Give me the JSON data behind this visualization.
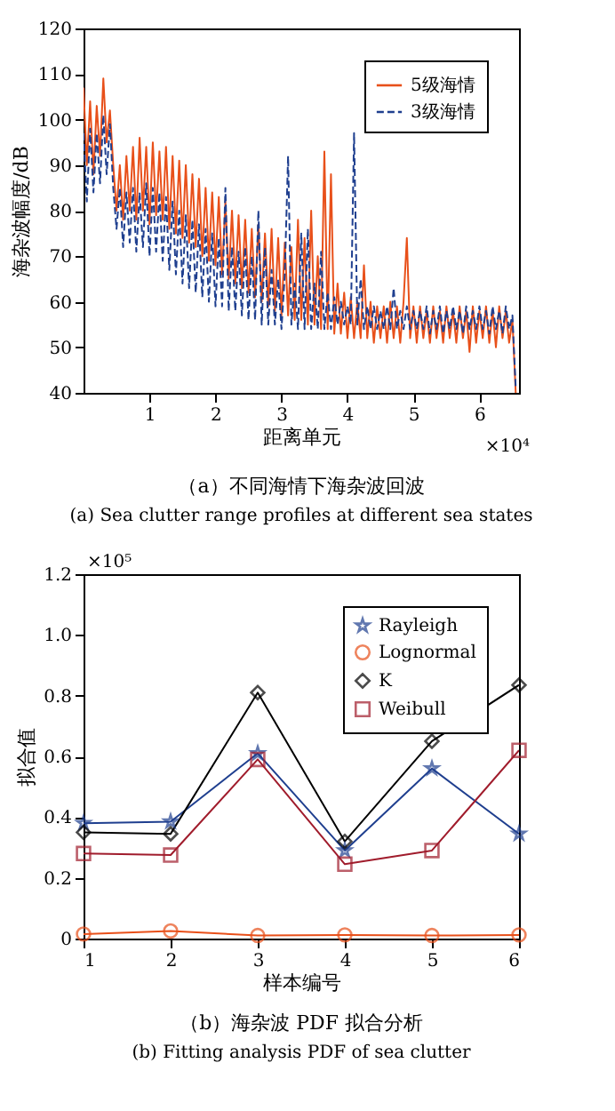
{
  "chart_data": [
    {
      "type": "line",
      "title": "（a）不同海情下海杂波回波",
      "subtitle": "(a) Sea clutter range profiles at different sea states",
      "xlabel": "距离单元",
      "ylabel": "海杂波幅度/dB",
      "annotations": [
        "×10⁴"
      ],
      "x": [
        0.0,
        0.05,
        0.1,
        0.15,
        0.2,
        0.25,
        0.3,
        0.35,
        0.4,
        0.45,
        0.5,
        0.55,
        0.6,
        0.65,
        0.7,
        0.75,
        0.8,
        0.85,
        0.9,
        0.95,
        1.0,
        1.05,
        1.1,
        1.15,
        1.2,
        1.25,
        1.3,
        1.35,
        1.4,
        1.45,
        1.5,
        1.55,
        1.6,
        1.65,
        1.7,
        1.75,
        1.8,
        1.85,
        1.9,
        1.95,
        2.0,
        2.05,
        2.1,
        2.15,
        2.2,
        2.25,
        2.3,
        2.35,
        2.4,
        2.45,
        2.5,
        2.55,
        2.6,
        2.65,
        2.7,
        2.75,
        2.8,
        2.85,
        2.9,
        2.95,
        3.0,
        3.05,
        3.1,
        3.15,
        3.2,
        3.25,
        3.3,
        3.35,
        3.4,
        3.45,
        3.5,
        3.55,
        3.6,
        3.65,
        3.7,
        3.75,
        3.8,
        3.85,
        3.9,
        3.95,
        4.0,
        4.05,
        4.1,
        4.15,
        4.2,
        4.25,
        4.3,
        4.35,
        4.4,
        4.45,
        4.5,
        4.55,
        4.6,
        4.65,
        4.7,
        4.75,
        4.8,
        4.85,
        4.9,
        4.95,
        5.0,
        5.05,
        5.1,
        5.15,
        5.2,
        5.25,
        5.3,
        5.35,
        5.4,
        5.45,
        5.5,
        5.55,
        5.6,
        5.65,
        5.7,
        5.75,
        5.8,
        5.85,
        5.9,
        5.95,
        6.0,
        6.05,
        6.1,
        6.15,
        6.2,
        6.25,
        6.3,
        6.35,
        6.4,
        6.45,
        6.5,
        6.55
      ],
      "series": [
        {
          "name": "5级海情",
          "color": "#e8501a",
          "line_style": "solid",
          "values": [
            107,
            90,
            104,
            88,
            103,
            92,
            109,
            95,
            102,
            90,
            80,
            90,
            78,
            92,
            80,
            94,
            78,
            96,
            80,
            94,
            77,
            95,
            79,
            93,
            78,
            94,
            76,
            92,
            75,
            91,
            74,
            90,
            73,
            88,
            72,
            87,
            70,
            85,
            69,
            84,
            68,
            83,
            66,
            82,
            65,
            80,
            64,
            79,
            63,
            78,
            62,
            76,
            61,
            77,
            60,
            75,
            59,
            76,
            58,
            74,
            57,
            73,
            57,
            72,
            56,
            78,
            56,
            74,
            55,
            80,
            55,
            70,
            54,
            93,
            54,
            88,
            53,
            64,
            53,
            62,
            52,
            61,
            52,
            60,
            52,
            68,
            52,
            60,
            51,
            59,
            52,
            59,
            51,
            60,
            52,
            59,
            51,
            60,
            74,
            52,
            59,
            51,
            59,
            52,
            58,
            51,
            59,
            52,
            58,
            51,
            59,
            52,
            58,
            51,
            59,
            52,
            58,
            49,
            59,
            51,
            58,
            52,
            59,
            51,
            58,
            50,
            59,
            52,
            58,
            51,
            56,
            40
          ]
        },
        {
          "name": "3级海情",
          "color": "#1f3f8f",
          "line_style": "dashed",
          "values": [
            97,
            82,
            98,
            84,
            97,
            86,
            101,
            88,
            99,
            85,
            76,
            85,
            72,
            84,
            73,
            85,
            71,
            84,
            72,
            86,
            70,
            85,
            71,
            84,
            69,
            83,
            67,
            82,
            66,
            80,
            64,
            79,
            63,
            78,
            62,
            77,
            61,
            76,
            60,
            75,
            59,
            74,
            59,
            85,
            58,
            72,
            58,
            71,
            57,
            72,
            56,
            70,
            56,
            80,
            55,
            72,
            55,
            67,
            55,
            65,
            54,
            66,
            92,
            55,
            64,
            54,
            75,
            54,
            76,
            54,
            64,
            54,
            71,
            54,
            62,
            54,
            61,
            55,
            60,
            55,
            59,
            55,
            97,
            55,
            65,
            54,
            59,
            54,
            59,
            54,
            58,
            54,
            59,
            54,
            63,
            54,
            58,
            54,
            59,
            54,
            58,
            54,
            58,
            54,
            59,
            53,
            58,
            54,
            59,
            53,
            58,
            54,
            59,
            54,
            58,
            53,
            59,
            54,
            58,
            54,
            59,
            54,
            58,
            53,
            59,
            54,
            58,
            53,
            59,
            54,
            57,
            41
          ]
        }
      ],
      "xlim": [
        0,
        6.6
      ],
      "xticks": [
        1,
        2,
        3,
        4,
        5,
        6
      ],
      "ylim": [
        40,
        120
      ],
      "yticks": [
        40,
        50,
        60,
        70,
        80,
        90,
        100,
        110,
        120
      ],
      "grid": false,
      "legend": "top right"
    },
    {
      "type": "line",
      "title": "（b）海杂波 PDF 拟合分析",
      "subtitle": "(b) Fitting analysis PDF of sea clutter",
      "xlabel": "样本编号",
      "ylabel": "拟合值",
      "annotations": [
        "×10⁵"
      ],
      "x": [
        1,
        2,
        3,
        4,
        5,
        6
      ],
      "series": [
        {
          "name": "Rayleigh",
          "color": "#1f3f8f",
          "marker": "star",
          "line_style": "solid",
          "values": [
            0.38,
            0.385,
            0.61,
            0.29,
            0.56,
            0.345
          ]
        },
        {
          "name": "Lognormal",
          "color": "#e8501a",
          "marker": "circle",
          "line_style": "solid",
          "values": [
            0.015,
            0.025,
            0.01,
            0.012,
            0.01,
            0.012
          ]
        },
        {
          "name": "K",
          "color": "#000000",
          "marker": "diamond",
          "line_style": "solid",
          "values": [
            0.35,
            0.345,
            0.81,
            0.32,
            0.65,
            0.835
          ]
        },
        {
          "name": "Weibull",
          "color": "#a01c2c",
          "marker": "square",
          "line_style": "solid",
          "values": [
            0.28,
            0.275,
            0.59,
            0.245,
            0.29,
            0.62
          ]
        }
      ],
      "xlim": [
        1,
        6
      ],
      "xticks": [
        1,
        2,
        3,
        4,
        5,
        6
      ],
      "ylim": [
        0,
        1.2
      ],
      "yticks": [
        0,
        0.2,
        0.4,
        0.6,
        0.8,
        {
          "value": 1,
          "label": "1.0"
        },
        {
          "value": 1.2,
          "label": "1.2"
        }
      ],
      "grid": false,
      "legend": "top right"
    }
  ]
}
